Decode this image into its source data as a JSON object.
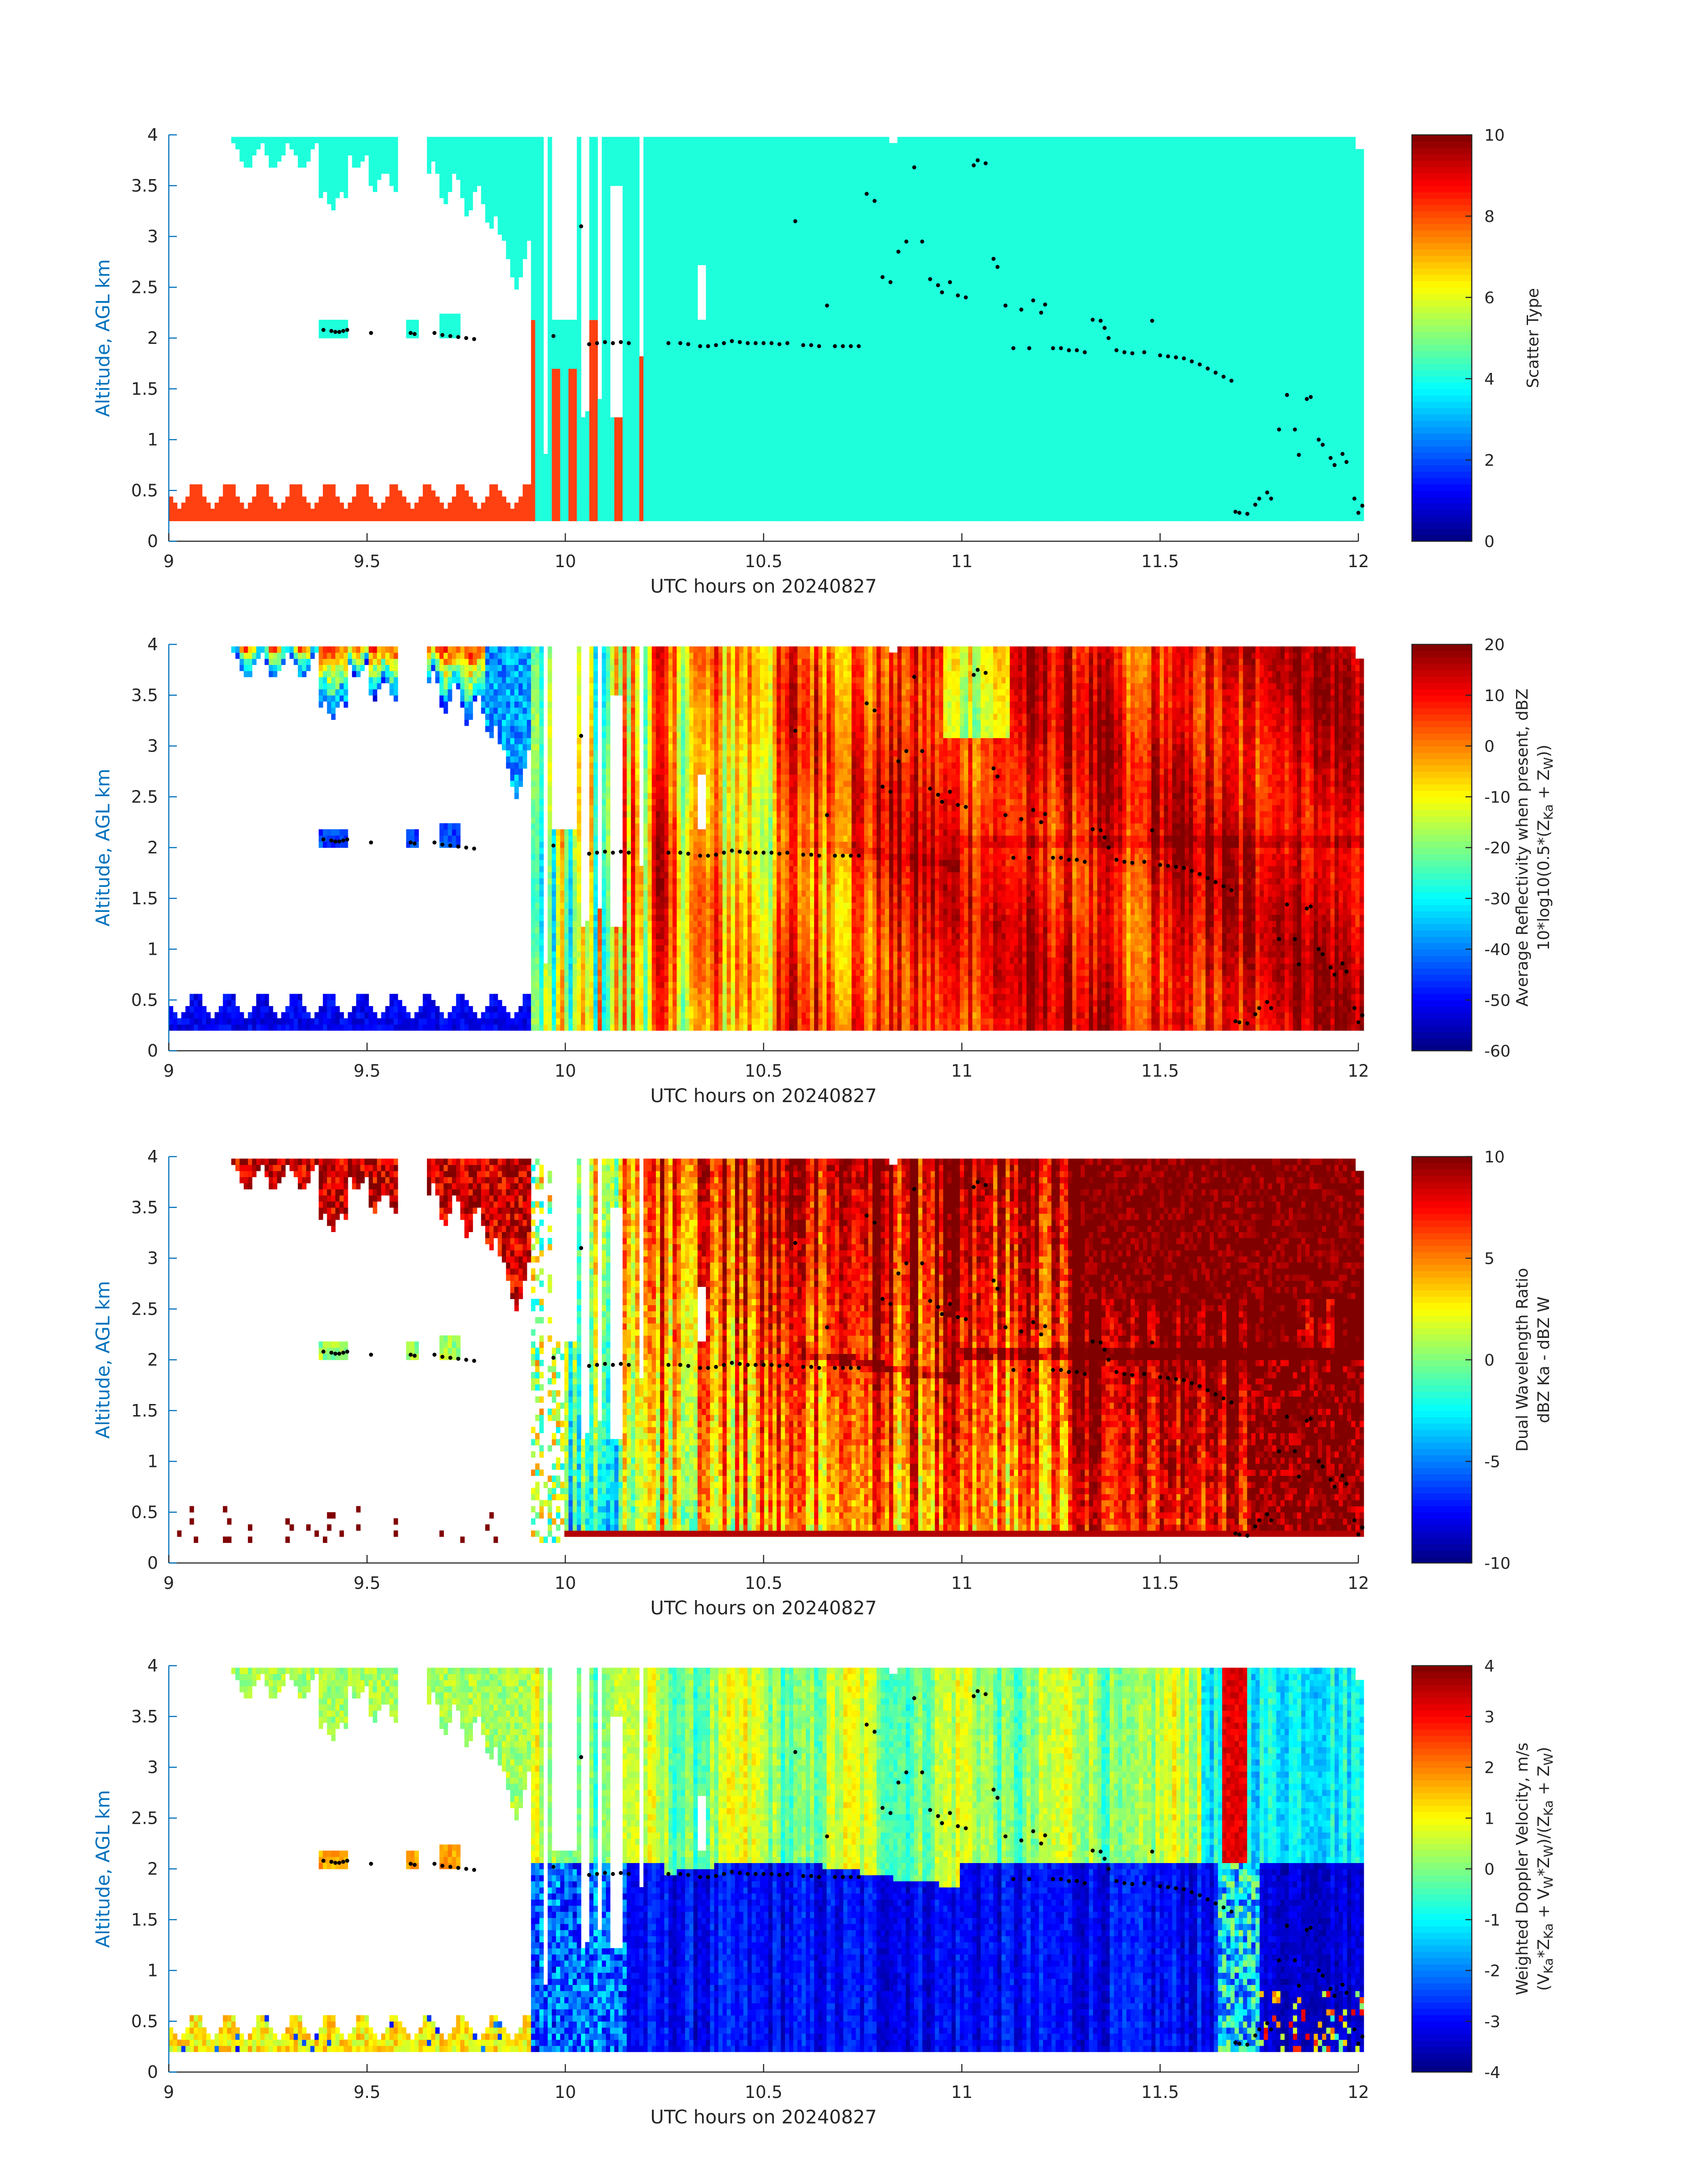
{
  "figure": {
    "colors": {
      "axis": "#262626",
      "ylabel": "#0072BD",
      "scatter_fill": "#1EFFDC",
      "scatter_low": "#FF4010",
      "marker": "#000000",
      "colormap": "jet"
    }
  },
  "chart_data": [
    {
      "type": "heatmap",
      "name": "scatter-type",
      "xlabel": "UTC hours on 20240827",
      "ylabel": "Altitude, AGL km",
      "xlim": [
        9,
        12
      ],
      "ylim": [
        0,
        4
      ],
      "xticks": [
        "9",
        "9.5",
        "10",
        "10.5",
        "11",
        "11.5",
        "12"
      ],
      "yticks": [
        "0",
        "0.5",
        "1",
        "1.5",
        "2",
        "2.5",
        "3",
        "3.5",
        "4"
      ],
      "colorbar": {
        "label_lines": [
          "Scatter Type"
        ],
        "range": [
          0,
          10
        ],
        "ticks": [
          "0",
          "2",
          "4",
          "6",
          "8",
          "10"
        ]
      }
    },
    {
      "type": "heatmap",
      "name": "average-reflectivity",
      "xlabel": "UTC hours on 20240827",
      "ylabel": "Altitude, AGL km",
      "xlim": [
        9,
        12
      ],
      "ylim": [
        0,
        4
      ],
      "xticks": [
        "9",
        "9.5",
        "10",
        "10.5",
        "11",
        "11.5",
        "12"
      ],
      "yticks": [
        "0",
        "0.5",
        "1",
        "1.5",
        "2",
        "2.5",
        "3",
        "3.5",
        "4"
      ],
      "colorbar": {
        "label_lines": [
          "Average Reflectivity when present, dBZ",
          "10*log10(0.5*(Z_Ka + Z_W))"
        ],
        "range": [
          -60,
          20
        ],
        "ticks": [
          "-60",
          "-50",
          "-40",
          "-30",
          "-20",
          "-10",
          "0",
          "10",
          "20"
        ]
      }
    },
    {
      "type": "heatmap",
      "name": "dual-wavelength-ratio",
      "xlabel": "UTC hours on 20240827",
      "ylabel": "Altitude, AGL km",
      "xlim": [
        9,
        12
      ],
      "ylim": [
        0,
        4
      ],
      "xticks": [
        "9",
        "9.5",
        "10",
        "10.5",
        "11",
        "11.5",
        "12"
      ],
      "yticks": [
        "0",
        "0.5",
        "1",
        "1.5",
        "2",
        "2.5",
        "3",
        "3.5",
        "4"
      ],
      "colorbar": {
        "label_lines": [
          "Dual Wavelength Ratio",
          "dBZ Ka - dBZ W"
        ],
        "range": [
          -10,
          10
        ],
        "ticks": [
          "-10",
          "-5",
          "0",
          "5",
          "10"
        ]
      }
    },
    {
      "type": "heatmap",
      "name": "weighted-doppler-velocity",
      "xlabel": "UTC hours on 20240827",
      "ylabel": "Altitude, AGL km",
      "xlim": [
        9,
        12
      ],
      "ylim": [
        0,
        4
      ],
      "xticks": [
        "9",
        "9.5",
        "10",
        "10.5",
        "11",
        "11.5",
        "12"
      ],
      "yticks": [
        "0",
        "0.5",
        "1",
        "1.5",
        "2",
        "2.5",
        "3",
        "3.5",
        "4"
      ],
      "colorbar": {
        "label_lines": [
          "Weighted Doppler Velocity, m/s",
          "(V_Ka*Z_Ka + V_W*Z_W)/(Z_Ka + Z_W)"
        ],
        "range": [
          -4,
          4
        ],
        "ticks": [
          "-4",
          "-3",
          "-2",
          "-1",
          "0",
          "1",
          "2",
          "3",
          "4"
        ]
      }
    }
  ]
}
